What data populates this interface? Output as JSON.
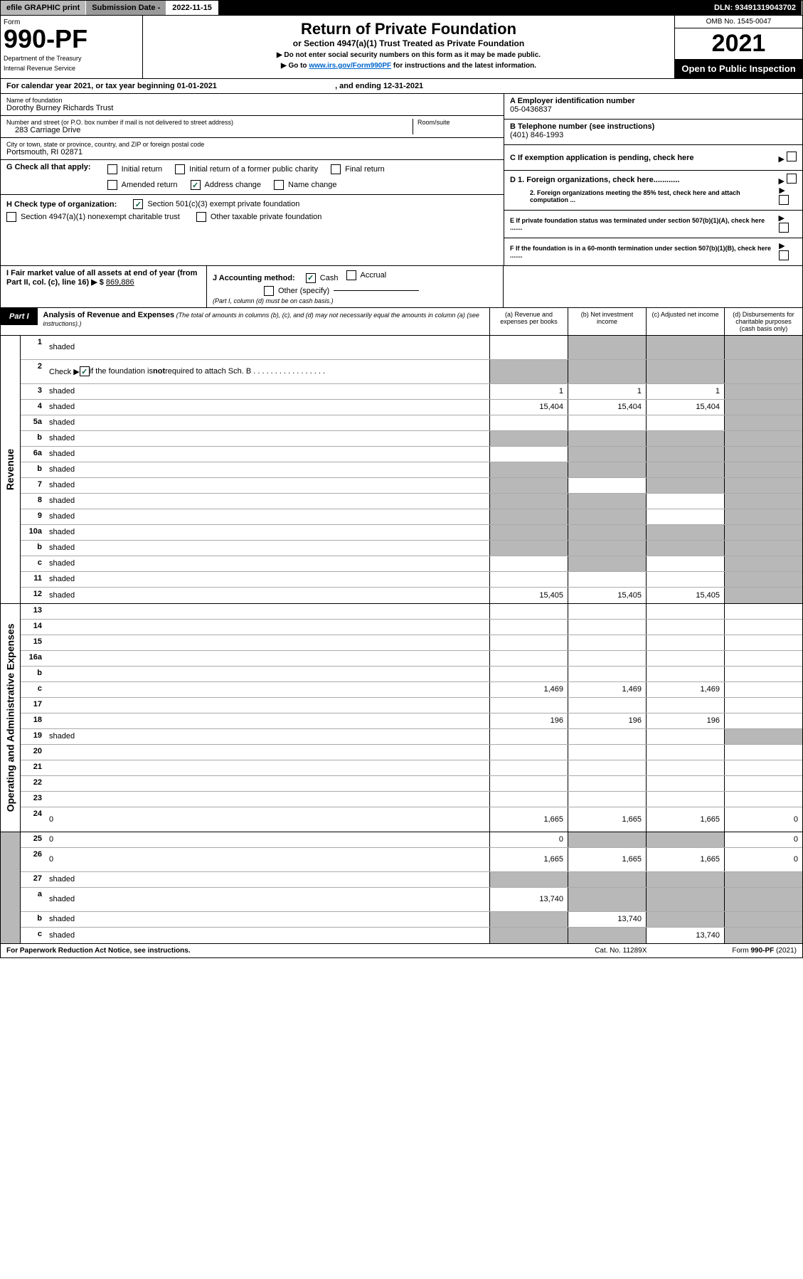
{
  "topbar": {
    "efile": "efile GRAPHIC print",
    "sub_label": "Submission Date - ",
    "sub_date": "2022-11-15",
    "dln_label": "DLN: ",
    "dln": "93491319043702"
  },
  "header": {
    "form_label": "Form",
    "form_number": "990-PF",
    "dept1": "Department of the Treasury",
    "dept2": "Internal Revenue Service",
    "title": "Return of Private Foundation",
    "subtitle": "or Section 4947(a)(1) Trust Treated as Private Foundation",
    "note1": "▶ Do not enter social security numbers on this form as it may be made public.",
    "note2_pre": "▶ Go to ",
    "note2_link": "www.irs.gov/Form990PF",
    "note2_post": " for instructions and the latest information.",
    "omb": "OMB No. 1545-0047",
    "year": "2021",
    "open_pub": "Open to Public Inspection"
  },
  "calendar": {
    "text_pre": "For calendar year 2021, or tax year beginning ",
    "begin": "01-01-2021",
    "mid": " , and ending ",
    "end": "12-31-2021"
  },
  "entity": {
    "name_label": "Name of foundation",
    "name": "Dorothy Burney Richards Trust",
    "addr_label": "Number and street (or P.O. box number if mail is not delivered to street address)",
    "addr": "283 Carriage Drive",
    "room_label": "Room/suite",
    "city_label": "City or town, state or province, country, and ZIP or foreign postal code",
    "city": "Portsmouth, RI  02871",
    "a_label": "A Employer identification number",
    "a_value": "05-0436837",
    "b_label": "B Telephone number (see instructions)",
    "b_value": "(401) 846-1993",
    "c_label": "C If exemption application is pending, check here",
    "d1_label": "D 1. Foreign organizations, check here............",
    "d2_label": "2. Foreign organizations meeting the 85% test, check here and attach computation ...",
    "e_label": "E  If private foundation status was terminated under section 507(b)(1)(A), check here .......",
    "f_label": "F  If the foundation is in a 60-month termination under section 507(b)(1)(B), check here .......",
    "g_label": "G Check all that apply:",
    "g_opts": [
      "Initial return",
      "Initial return of a former public charity",
      "Final return",
      "Amended return",
      "Address change",
      "Name change"
    ],
    "h_label": "H Check type of organization:",
    "h_opts": [
      "Section 501(c)(3) exempt private foundation",
      "Section 4947(a)(1) nonexempt charitable trust",
      "Other taxable private foundation"
    ],
    "i_label": "I Fair market value of all assets at end of year (from Part II, col. (c), line 16) ▶ $",
    "i_value": "869,886",
    "j_label": "J Accounting method:",
    "j_opts": [
      "Cash",
      "Accrual",
      "Other (specify)"
    ],
    "j_note": "(Part I, column (d) must be on cash basis.)"
  },
  "part1": {
    "tag": "Part I",
    "title": "Analysis of Revenue and Expenses",
    "title_note": " (The total of amounts in columns (b), (c), and (d) may not necessarily equal the amounts in column (a) (see instructions).)",
    "col_a": "(a)  Revenue and expenses per books",
    "col_b": "(b)  Net investment income",
    "col_c": "(c)  Adjusted net income",
    "col_d": "(d)  Disbursements for charitable purposes (cash basis only)"
  },
  "side_labels": {
    "revenue": "Revenue",
    "expenses": "Operating and Administrative Expenses"
  },
  "rows": [
    {
      "n": "1",
      "d": "shaded",
      "a": "",
      "b": "shaded",
      "c": "shaded",
      "tall": true
    },
    {
      "n": "2",
      "d_html": "Check ▶ [cb] if the foundation is <b>not</b> required to attach Sch. B  . . . . . . . . . . . . . . . . .",
      "a": "shaded",
      "b": "shaded",
      "c": "shaded",
      "d": "shaded",
      "tall": true
    },
    {
      "n": "3",
      "d": "shaded",
      "a": "1",
      "b": "1",
      "c": "1"
    },
    {
      "n": "4",
      "d": "shaded",
      "a": "15,404",
      "b": "15,404",
      "c": "15,404"
    },
    {
      "n": "5a",
      "d": "shaded",
      "a": "",
      "b": "",
      "c": ""
    },
    {
      "n": "b",
      "d": "shaded",
      "a": "shaded",
      "b": "shaded",
      "c": "shaded"
    },
    {
      "n": "6a",
      "d": "shaded",
      "a": "",
      "b": "shaded",
      "c": "shaded"
    },
    {
      "n": "b",
      "d": "shaded",
      "a": "shaded",
      "b": "shaded",
      "c": "shaded"
    },
    {
      "n": "7",
      "d": "shaded",
      "a": "shaded",
      "b": "",
      "c": "shaded"
    },
    {
      "n": "8",
      "d": "shaded",
      "a": "shaded",
      "b": "shaded",
      "c": ""
    },
    {
      "n": "9",
      "d": "shaded",
      "a": "shaded",
      "b": "shaded",
      "c": ""
    },
    {
      "n": "10a",
      "d": "shaded",
      "a": "shaded",
      "b": "shaded",
      "c": "shaded"
    },
    {
      "n": "b",
      "d": "shaded",
      "a": "shaded",
      "b": "shaded",
      "c": "shaded"
    },
    {
      "n": "c",
      "d": "shaded",
      "a": "",
      "b": "shaded",
      "c": ""
    },
    {
      "n": "11",
      "d": "shaded",
      "a": "",
      "b": "",
      "c": ""
    },
    {
      "n": "12",
      "d": "shaded",
      "a": "15,405",
      "b": "15,405",
      "c": "15,405"
    },
    {
      "n": "13",
      "d": "",
      "a": "",
      "b": "",
      "c": ""
    },
    {
      "n": "14",
      "d": "",
      "a": "",
      "b": "",
      "c": ""
    },
    {
      "n": "15",
      "d": "",
      "a": "",
      "b": "",
      "c": ""
    },
    {
      "n": "16a",
      "d": "",
      "a": "",
      "b": "",
      "c": ""
    },
    {
      "n": "b",
      "d": "",
      "a": "",
      "b": "",
      "c": ""
    },
    {
      "n": "c",
      "d": "",
      "a": "1,469",
      "b": "1,469",
      "c": "1,469"
    },
    {
      "n": "17",
      "d": "",
      "a": "",
      "b": "",
      "c": ""
    },
    {
      "n": "18",
      "d": "",
      "a": "196",
      "b": "196",
      "c": "196"
    },
    {
      "n": "19",
      "d": "shaded",
      "a": "",
      "b": "",
      "c": ""
    },
    {
      "n": "20",
      "d": "",
      "a": "",
      "b": "",
      "c": ""
    },
    {
      "n": "21",
      "d": "",
      "a": "",
      "b": "",
      "c": ""
    },
    {
      "n": "22",
      "d": "",
      "a": "",
      "b": "",
      "c": ""
    },
    {
      "n": "23",
      "d": "",
      "a": "",
      "b": "",
      "c": ""
    },
    {
      "n": "24",
      "d": "0",
      "a": "1,665",
      "b": "1,665",
      "c": "1,665",
      "tall": true
    },
    {
      "n": "25",
      "d": "0",
      "a": "0",
      "b": "shaded",
      "c": "shaded"
    },
    {
      "n": "26",
      "d": "0",
      "a": "1,665",
      "b": "1,665",
      "c": "1,665",
      "tall": true
    },
    {
      "n": "27",
      "d": "shaded",
      "a": "shaded",
      "b": "shaded",
      "c": "shaded"
    },
    {
      "n": "a",
      "d": "shaded",
      "a": "13,740",
      "b": "shaded",
      "c": "shaded",
      "tall": true
    },
    {
      "n": "b",
      "d": "shaded",
      "a": "shaded",
      "b": "13,740",
      "c": "shaded"
    },
    {
      "n": "c",
      "d": "shaded",
      "a": "shaded",
      "b": "shaded",
      "c": "13,740"
    }
  ],
  "footer": {
    "left": "For Paperwork Reduction Act Notice, see instructions.",
    "mid": "Cat. No. 11289X",
    "right": "Form 990-PF (2021)"
  },
  "colors": {
    "link": "#0066cc",
    "shaded": "#b8b8b8",
    "check": "#065f46"
  }
}
